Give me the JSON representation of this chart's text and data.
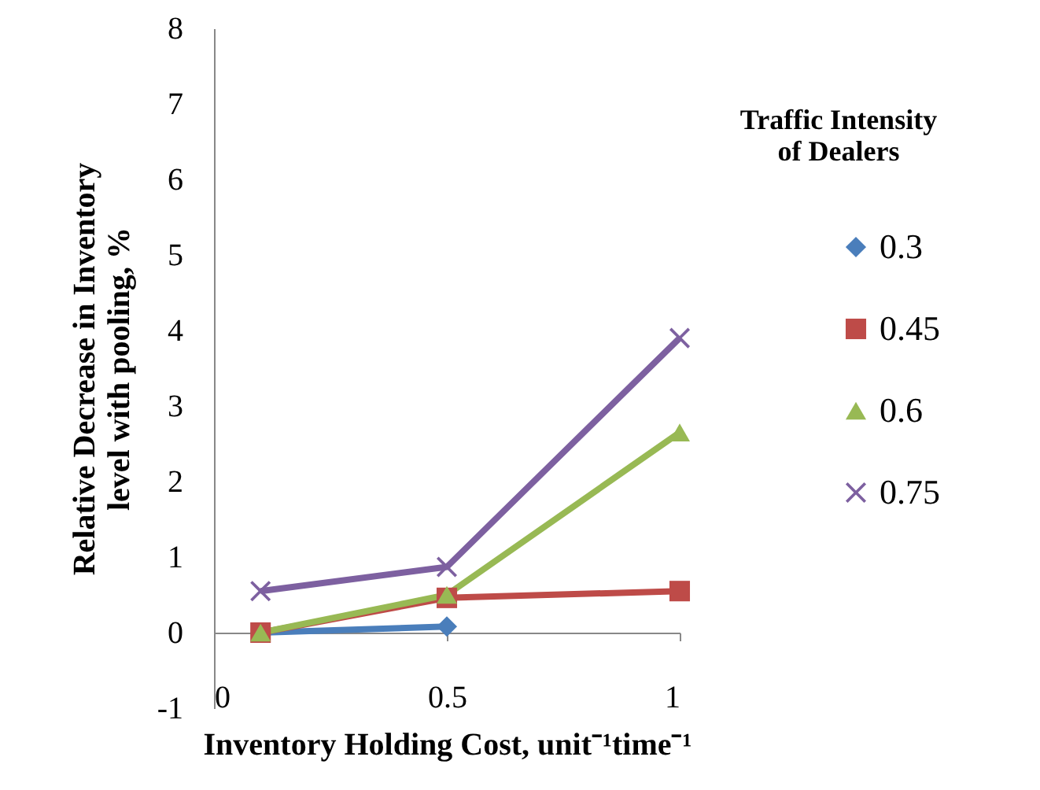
{
  "chart_data": {
    "type": "line",
    "xlabel": "Inventory Holding Cost, unit⁻¹time⁻¹",
    "ylabel": "Relative Decrease in Inventory level with pooling, %",
    "legend_title": "Traffic Intensity of Dealers",
    "x": [
      0.1,
      0.5,
      1
    ],
    "series": [
      {
        "name": "0.3",
        "color": "#4a7ebb",
        "marker": "diamond",
        "values": [
          0,
          0.08,
          null
        ]
      },
      {
        "name": "0.45",
        "color": "#be4b48",
        "marker": "square",
        "values": [
          0,
          0.46,
          0.55
        ]
      },
      {
        "name": "0.6",
        "color": "#98b954",
        "marker": "triangle",
        "values": [
          0,
          0.5,
          2.65
        ]
      },
      {
        "name": "0.75",
        "color": "#7d60a0",
        "marker": "cross",
        "values": [
          0.55,
          0.87,
          3.9
        ]
      }
    ],
    "xlim": [
      0,
      1
    ],
    "xticks": [
      0,
      0.5,
      1
    ],
    "ylim": [
      -1,
      8
    ],
    "yticks": [
      -1,
      0,
      1,
      2,
      3,
      4,
      5,
      6,
      7,
      8
    ],
    "grid": false,
    "legend": "right",
    "line_style": "solid"
  }
}
